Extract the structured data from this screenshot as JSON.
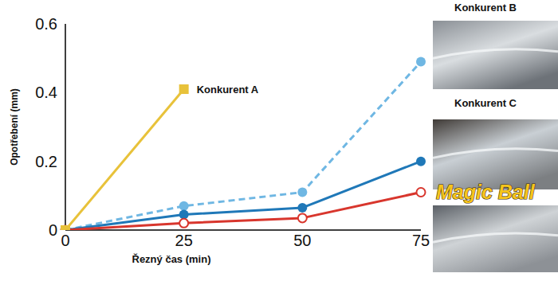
{
  "chart_data": {
    "type": "line",
    "x_label": "Řezný čas (min)",
    "y_label": "Opotřebení (mm)",
    "x": [
      0,
      25,
      50,
      75
    ],
    "xlim": [
      0,
      75
    ],
    "xticks": [
      0,
      25,
      50,
      75
    ],
    "ylim": [
      0,
      0.6
    ],
    "yticks": [
      0,
      0.2,
      0.4,
      0.6
    ],
    "grid": false,
    "legend": "right",
    "series": [
      {
        "name": "Konkurent A",
        "color": "#e8c23a",
        "marker": "square",
        "line_style": "solid",
        "values": [
          0,
          0.41,
          null,
          null
        ]
      },
      {
        "name": "Konkurent B",
        "color": "#6fb7e3",
        "marker": "circle",
        "line_style": "dashed",
        "values": [
          0,
          0.07,
          0.11,
          0.49
        ]
      },
      {
        "name": "Konkurent C",
        "color": "#1f78b8",
        "marker": "circle",
        "line_style": "solid",
        "values": [
          0,
          0.045,
          0.065,
          0.2
        ]
      },
      {
        "name": "Magic Ball",
        "color": "#d8362d",
        "marker": "open-circle",
        "line_style": "solid",
        "values": [
          0,
          0.02,
          0.035,
          0.11
        ]
      }
    ]
  }
}
